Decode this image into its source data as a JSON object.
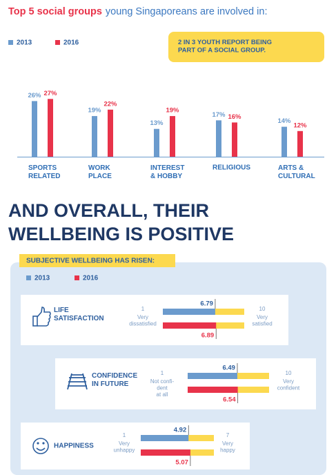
{
  "chart_data": [
    {
      "type": "bar",
      "title_highlight": "Top 5 social groups",
      "title": "young Singaporeans are involved in:",
      "callout": "2 IN 3 YOUTH REPORT BEING\nPART OF A SOCIAL GROUP.",
      "categories": [
        "SPORTS\nRELATED",
        "WORK\nPLACE",
        "INTEREST\n& HOBBY",
        "RELIGIOUS",
        "ARTS &\nCULTURAL"
      ],
      "series": [
        {
          "name": "2013",
          "color": "#6b9bcd",
          "values": [
            26,
            19,
            13,
            17,
            14
          ],
          "value_labels": [
            "26%",
            "19%",
            "13%",
            "17%",
            "14%"
          ]
        },
        {
          "name": "2016",
          "color": "#e8334a",
          "values": [
            27,
            22,
            19,
            16,
            12
          ],
          "value_labels": [
            "27%",
            "22%",
            "19%",
            "16%",
            "12%"
          ]
        }
      ],
      "ylim": [
        0,
        30
      ]
    },
    {
      "type": "scale",
      "heading": "AND OVERALL, THEIR\nWELLBEING IS POSITIVE",
      "title": "SUBJECTIVE WELLBEING HAS RISEN:",
      "categories": [
        "LIFE\nSATISFACTION",
        "CONFIDENCE\nIN FUTURE",
        "HAPPINESS"
      ],
      "scales": [
        {
          "xlim": [
            1,
            10
          ],
          "low_label": "Very\ndissatisfied",
          "high_label": "Very\nsatisfied"
        },
        {
          "xlim": [
            1,
            10
          ],
          "low_label": "Not confi-\ndent\nat all",
          "high_label": "Very\nconfident"
        },
        {
          "xlim": [
            1,
            7
          ],
          "low_label": "Very\nunhappy",
          "high_label": "Very\nhappy"
        }
      ],
      "series": [
        {
          "name": "2013",
          "color": "#6b9bcd",
          "values": [
            6.79,
            6.49,
            4.92
          ]
        },
        {
          "name": "2016",
          "color": "#e8334a",
          "values": [
            6.89,
            6.54,
            5.07
          ]
        }
      ],
      "track_color": "#fcd94f"
    }
  ]
}
